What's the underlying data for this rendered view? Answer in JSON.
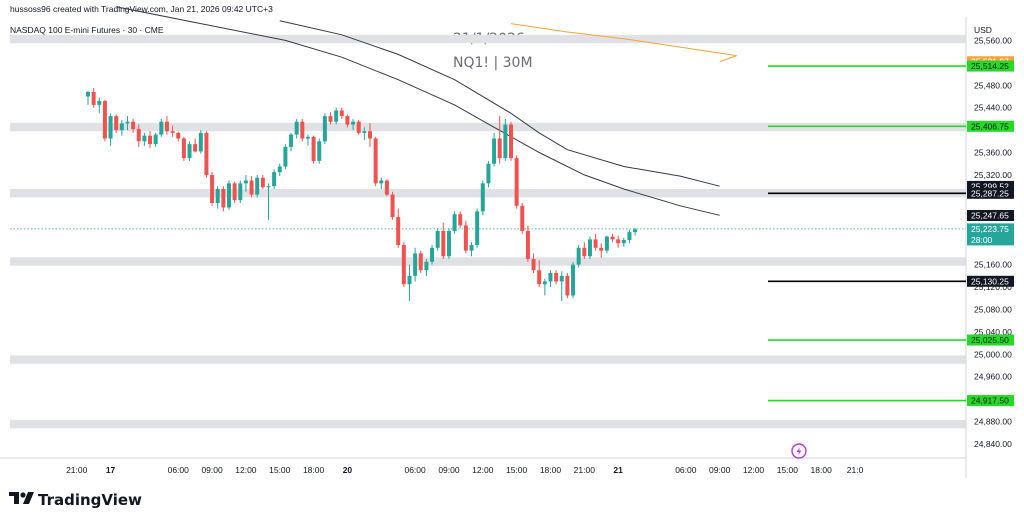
{
  "header": {
    "attribution": "hussoss96 created with TradingView.com, Jan 21, 2026 09:42 UTC+3",
    "symbol_line": "NASDAQ 100 E-mini Futures · 30 · CME",
    "currency": "USD"
  },
  "watermark": {
    "date": "21/1/2026",
    "symbol": "NQ1! | 30M"
  },
  "brand": {
    "name": "TradingView"
  },
  "colors": {
    "up": "#26a69a",
    "down": "#ef5350",
    "zone": "#dfe1e5",
    "green_level": "#26d926",
    "black_level": "#000000",
    "ma_long": "#f7a33a",
    "ma": "#363a45",
    "current_price_line": "#26a69a",
    "alert_icon": "#b23ad1"
  },
  "chart_data": {
    "type": "candlestick",
    "title": "NASDAQ 100 E-mini Futures · 30 · CME",
    "ylim": [
      24815,
      25600
    ],
    "y_ticks": [
      25560,
      25520,
      25480,
      25440,
      25400,
      25360,
      25320,
      25280,
      25240,
      25200,
      25160,
      25120,
      25080,
      25040,
      25000,
      24960,
      24920,
      24880,
      24840
    ],
    "y_tick_labels": [
      "25,560.00",
      "",
      "25,480.00",
      "25,440.00",
      "",
      "25,360.00",
      "25,320.00",
      "",
      "",
      "",
      "25,160.00",
      "25,120.00",
      "25,080.00",
      "25,040.00",
      "25,000.00",
      "24,960.00",
      "",
      "24,880.00",
      "24,840.00"
    ],
    "x_ticks": [
      {
        "bar": -2,
        "label": "21:00",
        "bold": false
      },
      {
        "bar": 4,
        "label": "17",
        "bold": true
      },
      {
        "bar": 16,
        "label": "06:00",
        "bold": false
      },
      {
        "bar": 22,
        "label": "09:00",
        "bold": false
      },
      {
        "bar": 28,
        "label": "12:00",
        "bold": false
      },
      {
        "bar": 34,
        "label": "15:00",
        "bold": false
      },
      {
        "bar": 40,
        "label": "18:00",
        "bold": false
      },
      {
        "bar": 46,
        "label": "20",
        "bold": true
      },
      {
        "bar": 58,
        "label": "06:00",
        "bold": false
      },
      {
        "bar": 64,
        "label": "09:00",
        "bold": false
      },
      {
        "bar": 70,
        "label": "12:00",
        "bold": false
      },
      {
        "bar": 76,
        "label": "15:00",
        "bold": false
      },
      {
        "bar": 82,
        "label": "18:00",
        "bold": false
      },
      {
        "bar": 88,
        "label": "21:00",
        "bold": false
      },
      {
        "bar": 94,
        "label": "21",
        "bold": true
      },
      {
        "bar": 106,
        "label": "06:00",
        "bold": false
      },
      {
        "bar": 112,
        "label": "09:00",
        "bold": false
      },
      {
        "bar": 118,
        "label": "12:00",
        "bold": false
      },
      {
        "bar": 124,
        "label": "15:00",
        "bold": false
      },
      {
        "bar": 130,
        "label": "18:00",
        "bold": false
      },
      {
        "bar": 136,
        "label": "21:0",
        "bold": false
      }
    ],
    "zones": [
      {
        "from": 25555,
        "to": 25570
      },
      {
        "from": 25398,
        "to": 25413
      },
      {
        "from": 25280,
        "to": 25295
      },
      {
        "from": 25158,
        "to": 25173
      },
      {
        "from": 24983,
        "to": 24998
      },
      {
        "from": 24868,
        "to": 24883
      }
    ],
    "levels": [
      {
        "price": 25514.25,
        "label": "25,514.25",
        "kind": "green"
      },
      {
        "price": 25406.75,
        "label": "25,406.75",
        "kind": "green"
      },
      {
        "price": 25287.25,
        "label": "25,287.25",
        "kind": "black"
      },
      {
        "price": 25130.25,
        "label": "25,130.25",
        "kind": "black"
      },
      {
        "price": 25025.5,
        "label": "25,025.50",
        "kind": "green"
      },
      {
        "price": 24917.5,
        "label": "24,917.50",
        "kind": "green"
      }
    ],
    "price_labels": [
      {
        "price": 25521.97,
        "label": "25,521.97",
        "kind": "ma_long"
      },
      {
        "price": 25299.52,
        "label": "25,299.52",
        "kind": "ma"
      },
      {
        "price": 25247.65,
        "label": "25,247.65",
        "kind": "ma"
      }
    ],
    "current_price": {
      "price": 25223.75,
      "label": "25,223.75",
      "countdown": "28:00"
    },
    "series": [
      {
        "name": "MA long",
        "kind": "ma_long",
        "points": [
          [
            75,
            25590
          ],
          [
            85,
            25575
          ],
          [
            95,
            25563
          ],
          [
            105,
            25548
          ],
          [
            115,
            25533
          ],
          [
            112,
            25522
          ]
        ]
      },
      {
        "name": "MA",
        "kind": "ma",
        "points": [
          [
            34,
            25595
          ],
          [
            45,
            25570
          ],
          [
            55,
            25535
          ],
          [
            65,
            25490
          ],
          [
            75,
            25430
          ],
          [
            80,
            25395
          ],
          [
            85,
            25365
          ],
          [
            95,
            25335
          ],
          [
            105,
            25318
          ],
          [
            112,
            25300
          ]
        ]
      },
      {
        "name": "MA",
        "kind": "ma",
        "points": [
          [
            5,
            25620
          ],
          [
            20,
            25590
          ],
          [
            35,
            25560
          ],
          [
            45,
            25530
          ],
          [
            55,
            25490
          ],
          [
            65,
            25445
          ],
          [
            72,
            25405
          ],
          [
            80,
            25360
          ],
          [
            88,
            25320
          ],
          [
            95,
            25295
          ],
          [
            105,
            25265
          ],
          [
            112,
            25248
          ]
        ]
      }
    ],
    "candles": [
      [
        25460,
        25470,
        25445,
        25468
      ],
      [
        25468,
        25475,
        25440,
        25445
      ],
      [
        25445,
        25458,
        25430,
        25452
      ],
      [
        25452,
        25454,
        25380,
        25385
      ],
      [
        25385,
        25430,
        25372,
        25425
      ],
      [
        25425,
        25428,
        25395,
        25400
      ],
      [
        25400,
        25418,
        25390,
        25412
      ],
      [
        25412,
        25425,
        25400,
        25415
      ],
      [
        25415,
        25420,
        25395,
        25402
      ],
      [
        25402,
        25410,
        25370,
        25380
      ],
      [
        25380,
        25395,
        25372,
        25390
      ],
      [
        25390,
        25398,
        25368,
        25375
      ],
      [
        25375,
        25395,
        25370,
        25392
      ],
      [
        25392,
        25420,
        25388,
        25415
      ],
      [
        25415,
        25425,
        25392,
        25398
      ],
      [
        25398,
        25408,
        25388,
        25395
      ],
      [
        25395,
        25397,
        25380,
        25385
      ],
      [
        25385,
        25388,
        25345,
        25350
      ],
      [
        25350,
        25380,
        25345,
        25375
      ],
      [
        25375,
        25385,
        25360,
        25362
      ],
      [
        25362,
        25400,
        25358,
        25395
      ],
      [
        25395,
        25398,
        25315,
        25320
      ],
      [
        25320,
        25325,
        25265,
        25270
      ],
      [
        25270,
        25300,
        25260,
        25295
      ],
      [
        25295,
        25300,
        25255,
        25262
      ],
      [
        25262,
        25310,
        25258,
        25305
      ],
      [
        25305,
        25308,
        25270,
        25275
      ],
      [
        25275,
        25310,
        25270,
        25305
      ],
      [
        25305,
        25320,
        25290,
        25310
      ],
      [
        25310,
        25318,
        25280,
        25285
      ],
      [
        25285,
        25320,
        25280,
        25315
      ],
      [
        25315,
        25320,
        25295,
        25298
      ],
      [
        25298,
        25305,
        25240,
        25300
      ],
      [
        25300,
        25330,
        25295,
        25325
      ],
      [
        25325,
        25340,
        25318,
        25335
      ],
      [
        25335,
        25375,
        25330,
        25370
      ],
      [
        25370,
        25395,
        25362,
        25392
      ],
      [
        25392,
        25420,
        25385,
        25415
      ],
      [
        25415,
        25420,
        25380,
        25385
      ],
      [
        25385,
        25392,
        25372,
        25388
      ],
      [
        25388,
        25390,
        25340,
        25345
      ],
      [
        25345,
        25385,
        25340,
        25380
      ],
      [
        25380,
        25430,
        25375,
        25425
      ],
      [
        25425,
        25432,
        25410,
        25415
      ],
      [
        25415,
        25440,
        25410,
        25435
      ],
      [
        25435,
        25440,
        25420,
        25425
      ],
      [
        25425,
        25428,
        25405,
        25410
      ],
      [
        25410,
        25420,
        25400,
        25415
      ],
      [
        25415,
        25418,
        25392,
        25395
      ],
      [
        25395,
        25405,
        25382,
        25398
      ],
      [
        25398,
        25412,
        25370,
        25385
      ],
      [
        25385,
        25388,
        25300,
        25305
      ],
      [
        25305,
        25315,
        25295,
        25310
      ],
      [
        25310,
        25312,
        25282,
        25285
      ],
      [
        25285,
        25290,
        25240,
        25245
      ],
      [
        25245,
        25260,
        25190,
        25195
      ],
      [
        25195,
        25200,
        25120,
        25125
      ],
      [
        25125,
        25160,
        25095,
        25140
      ],
      [
        25140,
        25190,
        25130,
        25180
      ],
      [
        25180,
        25185,
        25145,
        25150
      ],
      [
        25150,
        25170,
        25140,
        25165
      ],
      [
        25165,
        25195,
        25160,
        25190
      ],
      [
        25190,
        25225,
        25185,
        25220
      ],
      [
        25220,
        25235,
        25170,
        25175
      ],
      [
        25175,
        25225,
        25170,
        25220
      ],
      [
        25220,
        25255,
        25215,
        25250
      ],
      [
        25250,
        25255,
        25225,
        25230
      ],
      [
        25230,
        25238,
        25180,
        25185
      ],
      [
        25185,
        25200,
        25175,
        25195
      ],
      [
        25195,
        25260,
        25190,
        25255
      ],
      [
        25255,
        25310,
        25248,
        25305
      ],
      [
        25305,
        25345,
        25298,
        25340
      ],
      [
        25340,
        25395,
        25335,
        25385
      ],
      [
        25385,
        25425,
        25340,
        25350
      ],
      [
        25350,
        25420,
        25345,
        25410
      ],
      [
        25410,
        25415,
        25345,
        25350
      ],
      [
        25350,
        25355,
        25260,
        25265
      ],
      [
        25265,
        25270,
        25215,
        25220
      ],
      [
        25220,
        25230,
        25165,
        25170
      ],
      [
        25170,
        25180,
        25145,
        25150
      ],
      [
        25150,
        25168,
        25120,
        25125
      ],
      [
        25125,
        25135,
        25105,
        25130
      ],
      [
        25130,
        25150,
        25120,
        25145
      ],
      [
        25145,
        25150,
        25125,
        25130
      ],
      [
        25130,
        25148,
        25095,
        25140
      ],
      [
        25140,
        25145,
        25100,
        25105
      ],
      [
        25105,
        25165,
        25100,
        25160
      ],
      [
        25160,
        25195,
        25155,
        25190
      ],
      [
        25190,
        25200,
        25170,
        25175
      ],
      [
        25175,
        25210,
        25170,
        25205
      ],
      [
        25205,
        25215,
        25185,
        25190
      ],
      [
        25190,
        25198,
        25172,
        25185
      ],
      [
        25185,
        25212,
        25180,
        25210
      ],
      [
        25210,
        25215,
        25200,
        25205
      ],
      [
        25205,
        25212,
        25190,
        25198
      ],
      [
        25198,
        25208,
        25192,
        25204
      ],
      [
        25204,
        25222,
        25198,
        25218
      ],
      [
        25218,
        25225,
        25212,
        25223
      ]
    ]
  }
}
